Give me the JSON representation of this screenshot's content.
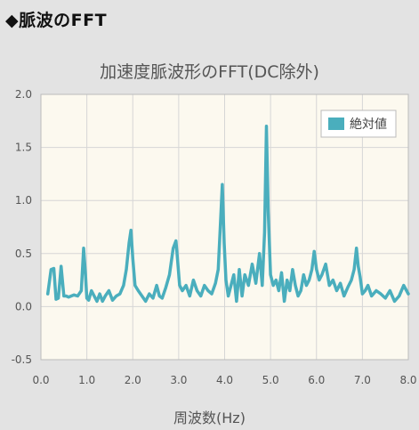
{
  "page": {
    "heading": "◆脈波のFFT"
  },
  "colors": {
    "series": "#4aaebd",
    "plot_background": "#fcf9ef",
    "grid": "#d6d6d6"
  },
  "chart_data": {
    "type": "line",
    "title": "加速度脈波形のFFT(DC除外)",
    "xlabel": "周波数(Hz)",
    "ylabel": "",
    "xlim": [
      0,
      8
    ],
    "ylim": [
      -0.5,
      2
    ],
    "xticks": [
      "0.0",
      "1.0",
      "2.0",
      "3.0",
      "4.0",
      "5.0",
      "6.0",
      "7.0",
      "8.0"
    ],
    "yticks": [
      "-0.5",
      "0.0",
      "0.5",
      "1.0",
      "1.5",
      "2.0"
    ],
    "grid": true,
    "legend_position": "top-right",
    "series": [
      {
        "name": "絶対値",
        "x": [
          0.15,
          0.22,
          0.28,
          0.33,
          0.38,
          0.44,
          0.5,
          0.55,
          0.6,
          0.66,
          0.72,
          0.8,
          0.88,
          0.93,
          0.97,
          1.0,
          1.04,
          1.1,
          1.16,
          1.22,
          1.28,
          1.34,
          1.4,
          1.48,
          1.56,
          1.64,
          1.72,
          1.8,
          1.86,
          1.92,
          1.96,
          2.0,
          2.05,
          2.12,
          2.2,
          2.28,
          2.36,
          2.44,
          2.52,
          2.58,
          2.64,
          2.72,
          2.8,
          2.88,
          2.94,
          2.98,
          3.02,
          3.08,
          3.16,
          3.24,
          3.32,
          3.4,
          3.48,
          3.56,
          3.64,
          3.72,
          3.8,
          3.86,
          3.91,
          3.95,
          3.99,
          4.03,
          4.08,
          4.14,
          4.2,
          4.26,
          4.32,
          4.38,
          4.44,
          4.52,
          4.6,
          4.68,
          4.76,
          4.82,
          4.87,
          4.91,
          4.95,
          5.0,
          5.06,
          5.12,
          5.18,
          5.24,
          5.3,
          5.36,
          5.42,
          5.48,
          5.54,
          5.6,
          5.66,
          5.72,
          5.78,
          5.84,
          5.9,
          5.95,
          6.0,
          6.06,
          6.12,
          6.2,
          6.28,
          6.36,
          6.44,
          6.52,
          6.6,
          6.68,
          6.76,
          6.82,
          6.87,
          6.91,
          6.95,
          7.0,
          7.06,
          7.12,
          7.2,
          7.3,
          7.4,
          7.5,
          7.6,
          7.7,
          7.8,
          7.9,
          8.0
        ],
        "values": [
          0.12,
          0.35,
          0.36,
          0.07,
          0.08,
          0.38,
          0.1,
          0.1,
          0.09,
          0.1,
          0.11,
          0.1,
          0.15,
          0.55,
          0.3,
          0.08,
          0.06,
          0.15,
          0.1,
          0.05,
          0.12,
          0.05,
          0.1,
          0.15,
          0.06,
          0.1,
          0.12,
          0.2,
          0.35,
          0.6,
          0.72,
          0.45,
          0.2,
          0.15,
          0.1,
          0.05,
          0.12,
          0.08,
          0.2,
          0.1,
          0.08,
          0.18,
          0.3,
          0.55,
          0.62,
          0.42,
          0.2,
          0.15,
          0.2,
          0.1,
          0.25,
          0.15,
          0.1,
          0.2,
          0.15,
          0.12,
          0.22,
          0.35,
          0.8,
          1.15,
          0.6,
          0.25,
          0.1,
          0.2,
          0.3,
          0.05,
          0.35,
          0.1,
          0.3,
          0.2,
          0.4,
          0.22,
          0.5,
          0.2,
          0.7,
          1.7,
          0.9,
          0.3,
          0.2,
          0.25,
          0.15,
          0.32,
          0.05,
          0.25,
          0.15,
          0.35,
          0.2,
          0.1,
          0.15,
          0.3,
          0.2,
          0.25,
          0.35,
          0.52,
          0.35,
          0.25,
          0.3,
          0.4,
          0.2,
          0.25,
          0.15,
          0.22,
          0.1,
          0.18,
          0.25,
          0.35,
          0.55,
          0.38,
          0.28,
          0.12,
          0.15,
          0.2,
          0.1,
          0.15,
          0.12,
          0.08,
          0.15,
          0.05,
          0.1,
          0.2,
          0.12
        ]
      }
    ]
  }
}
